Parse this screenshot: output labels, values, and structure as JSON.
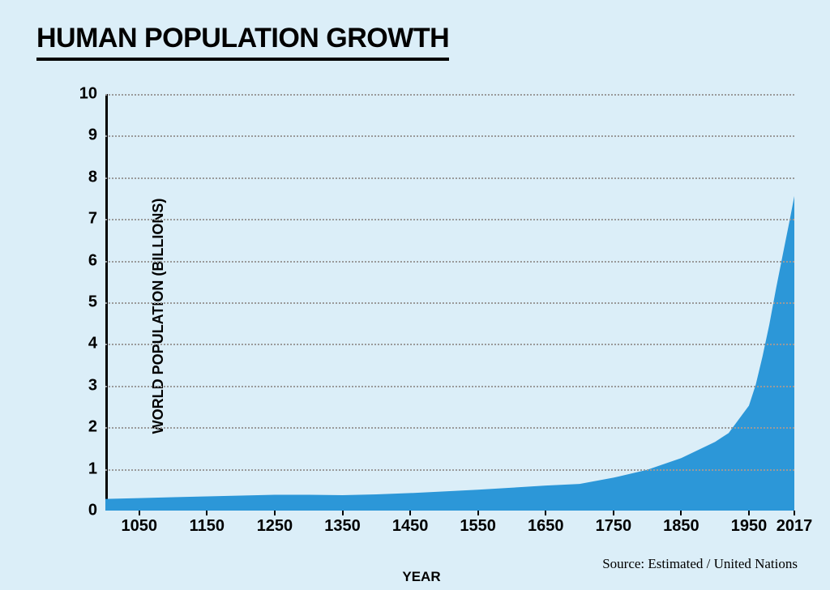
{
  "background_color": "#dbeef8",
  "title": {
    "text": "HUMAN POPULATION GROWTH",
    "color": "#000000",
    "underline_color": "#000000"
  },
  "source_text": "Source: Estimated / United Nations",
  "source_color": "#000000",
  "chart": {
    "type": "area",
    "fill_color": "#2c97d8",
    "axis_color": "#000000",
    "grid_color": "#9a9a9a",
    "y": {
      "label": "WORLD POPULATION (BILLIONS)",
      "min": 0,
      "max": 10,
      "ticks": [
        0,
        1,
        2,
        3,
        4,
        5,
        6,
        7,
        8,
        9,
        10
      ]
    },
    "x": {
      "label": "YEAR",
      "min": 1000,
      "max": 2017,
      "ticks": [
        1050,
        1150,
        1250,
        1350,
        1450,
        1550,
        1650,
        1750,
        1850,
        1950,
        2017
      ]
    },
    "data": [
      {
        "year": 1000,
        "pop": 0.28
      },
      {
        "year": 1050,
        "pop": 0.3
      },
      {
        "year": 1100,
        "pop": 0.32
      },
      {
        "year": 1150,
        "pop": 0.34
      },
      {
        "year": 1200,
        "pop": 0.36
      },
      {
        "year": 1250,
        "pop": 0.38
      },
      {
        "year": 1300,
        "pop": 0.38
      },
      {
        "year": 1350,
        "pop": 0.37
      },
      {
        "year": 1400,
        "pop": 0.39
      },
      {
        "year": 1450,
        "pop": 0.42
      },
      {
        "year": 1500,
        "pop": 0.46
      },
      {
        "year": 1550,
        "pop": 0.5
      },
      {
        "year": 1600,
        "pop": 0.55
      },
      {
        "year": 1650,
        "pop": 0.6
      },
      {
        "year": 1700,
        "pop": 0.64
      },
      {
        "year": 1750,
        "pop": 0.79
      },
      {
        "year": 1800,
        "pop": 0.98
      },
      {
        "year": 1850,
        "pop": 1.26
      },
      {
        "year": 1900,
        "pop": 1.65
      },
      {
        "year": 1920,
        "pop": 1.86
      },
      {
        "year": 1940,
        "pop": 2.3
      },
      {
        "year": 1950,
        "pop": 2.52
      },
      {
        "year": 1960,
        "pop": 3.02
      },
      {
        "year": 1970,
        "pop": 3.7
      },
      {
        "year": 1980,
        "pop": 4.46
      },
      {
        "year": 1990,
        "pop": 5.33
      },
      {
        "year": 2000,
        "pop": 6.15
      },
      {
        "year": 2010,
        "pop": 6.96
      },
      {
        "year": 2017,
        "pop": 7.55
      }
    ],
    "tick_font_color": "#000000"
  }
}
